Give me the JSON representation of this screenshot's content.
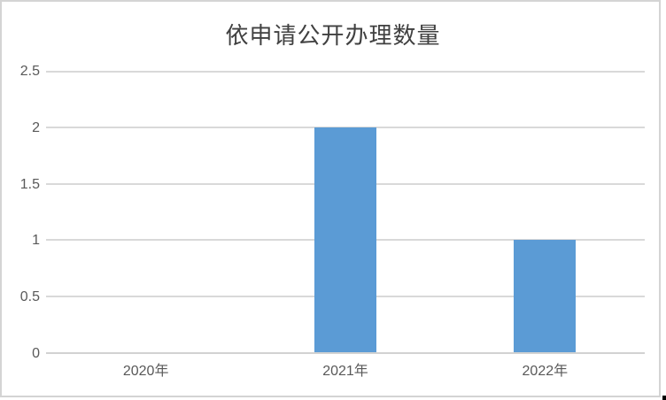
{
  "chart_data": {
    "type": "bar",
    "title": "依申请公开办理数量",
    "categories": [
      "2020年",
      "2021年",
      "2022年"
    ],
    "values": [
      0,
      2,
      1
    ],
    "xlabel": "",
    "ylabel": "",
    "ylim": [
      0,
      2.5
    ],
    "yticks": [
      0,
      0.5,
      1,
      1.5,
      2,
      2.5
    ],
    "ytick_labels": [
      "0",
      "0.5",
      "1",
      "1.5",
      "2",
      "2.5"
    ],
    "grid": "horizontal",
    "legend_position": "none",
    "bar_color": "#5B9BD5"
  },
  "colors": {
    "background": "#FFFFFF",
    "bar": "#5B9BD5",
    "gridline": "#D9D9D9",
    "axis_line": "#D2D2D2",
    "title_text": "#404040",
    "tick_text": "#595959",
    "frame_border": "#D4D4D4",
    "corner_mark": "#000000"
  }
}
